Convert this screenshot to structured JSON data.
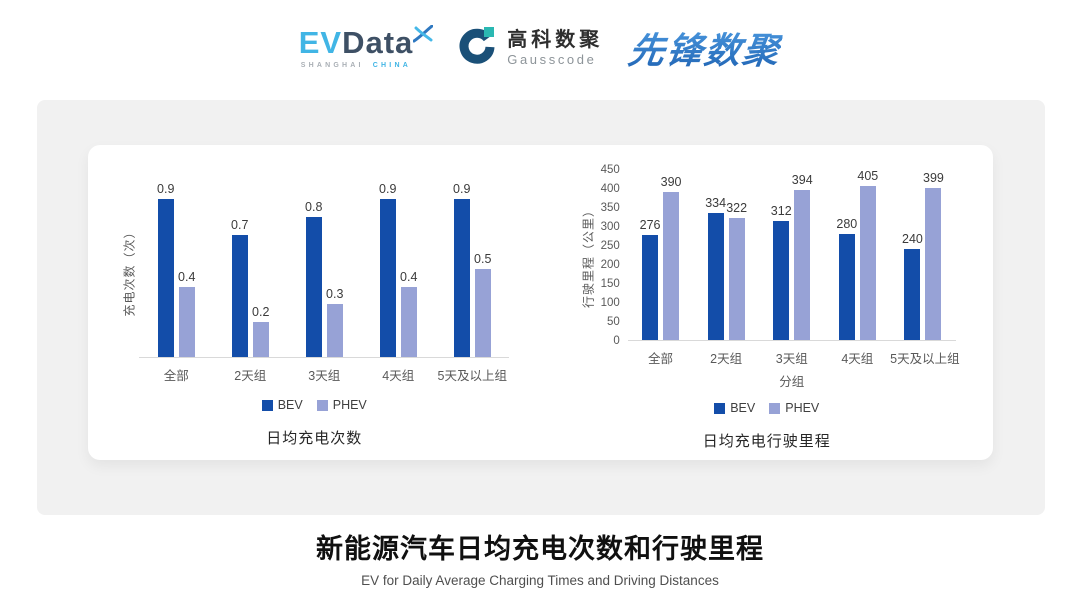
{
  "header": {
    "evdata": {
      "part1": "EV",
      "part2": "Data",
      "sub1": "SHANGHAI",
      "sub2": "CHINA"
    },
    "gausscode": {
      "name_cn": "高科数聚",
      "name_en": "Gausscode"
    },
    "pioneer": {
      "text": "先锋数聚"
    }
  },
  "chart_data": [
    {
      "type": "bar",
      "title": "日均充电次数",
      "categories": [
        "全部",
        "2天组",
        "3天组",
        "4天组",
        "5天及以上组"
      ],
      "series": [
        {
          "name": "BEV",
          "color_key": "bev",
          "values": [
            0.9,
            0.7,
            0.8,
            0.9,
            0.9
          ]
        },
        {
          "name": "PHEV",
          "color_key": "phev",
          "values": [
            0.4,
            0.2,
            0.3,
            0.4,
            0.5
          ]
        }
      ],
      "ylabel": "充电次数（次）",
      "xlabel": "",
      "ylim": [
        0,
        1.0
      ],
      "yticks_visible": false,
      "value_decimals": 1,
      "grid": false,
      "legend": [
        "BEV",
        "PHEV"
      ],
      "legend_position": "bottom"
    },
    {
      "type": "bar",
      "title": "日均充电行驶里程",
      "categories": [
        "全部",
        "2天组",
        "3天组",
        "4天组",
        "5天及以上组"
      ],
      "series": [
        {
          "name": "BEV",
          "color_key": "bev",
          "values": [
            276,
            334,
            312,
            280,
            240
          ]
        },
        {
          "name": "PHEV",
          "color_key": "phev",
          "values": [
            390,
            322,
            394,
            405,
            399
          ]
        }
      ],
      "ylabel": "行驶里程（公里）",
      "xlabel": "分组",
      "ylim": [
        0,
        450
      ],
      "ytick_step": 50,
      "yticks_visible": true,
      "value_decimals": 0,
      "grid": false,
      "legend": [
        "BEV",
        "PHEV"
      ],
      "legend_position": "bottom"
    }
  ],
  "footer": {
    "title": "新能源汽车日均充电次数和行驶里程",
    "subtitle": "EV for Daily Average Charging Times and Driving Distances"
  },
  "colors": {
    "bev": "#134DA9",
    "phev": "#97A2D6",
    "axis_text": "#595959",
    "value_text": "#3B3B3B",
    "baseline": "#D9D9D9",
    "panel_bg": "#F1F1F1",
    "card_bg": "#FFFFFF"
  }
}
